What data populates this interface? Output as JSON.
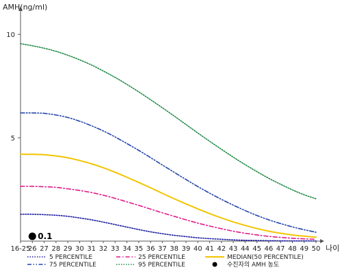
{
  "chart_data": {
    "type": "line",
    "ylabel": "AMH(ng/ml)",
    "xlabel": "나이",
    "ylim": [
      0,
      11
    ],
    "y_ticks": [
      5,
      10
    ],
    "grid": false,
    "x": [
      "16-25",
      "26",
      "27",
      "28",
      "29",
      "30",
      "31",
      "32",
      "33",
      "34",
      "35",
      "36",
      "37",
      "38",
      "39",
      "40",
      "41",
      "42",
      "43",
      "44",
      "45",
      "46",
      "47",
      "48",
      "49",
      "50"
    ],
    "series": [
      {
        "name": "5 PERCENTILE",
        "color": "#1a1aa0",
        "dash": "dotted",
        "values": [
          1.3,
          1.3,
          1.28,
          1.25,
          1.2,
          1.12,
          1.03,
          0.92,
          0.8,
          0.68,
          0.56,
          0.45,
          0.36,
          0.28,
          0.22,
          0.16,
          0.12,
          0.09,
          0.06,
          0.04,
          0.03,
          0.02,
          0.015,
          0.01,
          0.01,
          0.01
        ]
      },
      {
        "name": "25 PERCENTILE",
        "color": "#e0188a",
        "dash": "dashdot",
        "values": [
          2.65,
          2.65,
          2.63,
          2.6,
          2.53,
          2.45,
          2.35,
          2.22,
          2.07,
          1.9,
          1.73,
          1.55,
          1.37,
          1.2,
          1.03,
          0.87,
          0.73,
          0.6,
          0.48,
          0.38,
          0.3,
          0.23,
          0.18,
          0.14,
          0.11,
          0.09
        ]
      },
      {
        "name": "MEDIAN(50 PERCENTILE)",
        "color": "#f2c400",
        "dash": "solid",
        "values": [
          4.2,
          4.2,
          4.18,
          4.12,
          4.03,
          3.9,
          3.74,
          3.55,
          3.33,
          3.09,
          2.84,
          2.58,
          2.31,
          2.05,
          1.8,
          1.56,
          1.33,
          1.12,
          0.93,
          0.76,
          0.61,
          0.48,
          0.38,
          0.3,
          0.24,
          0.19
        ]
      },
      {
        "name": "75 PERCENTILE",
        "color": "#2244aa",
        "dash": "dashdotdot",
        "values": [
          6.2,
          6.2,
          6.18,
          6.1,
          5.98,
          5.8,
          5.58,
          5.33,
          5.04,
          4.72,
          4.39,
          4.04,
          3.68,
          3.33,
          2.98,
          2.64,
          2.32,
          2.02,
          1.74,
          1.48,
          1.24,
          1.03,
          0.85,
          0.69,
          0.55,
          0.43
        ]
      },
      {
        "name": "95 PERCENTILE",
        "color": "#1f8a44",
        "dash": "dotted",
        "values": [
          9.55,
          9.45,
          9.33,
          9.18,
          8.99,
          8.77,
          8.52,
          8.23,
          7.92,
          7.58,
          7.22,
          6.84,
          6.45,
          6.05,
          5.64,
          5.23,
          4.83,
          4.44,
          4.06,
          3.7,
          3.36,
          3.04,
          2.75,
          2.48,
          2.24,
          2.05
        ]
      }
    ],
    "marker": {
      "x": "26",
      "y": 0.1,
      "label": "0.1",
      "legend": "수진자의 AMH 농도",
      "color": "#000000"
    },
    "legend_placement": "bottom"
  }
}
